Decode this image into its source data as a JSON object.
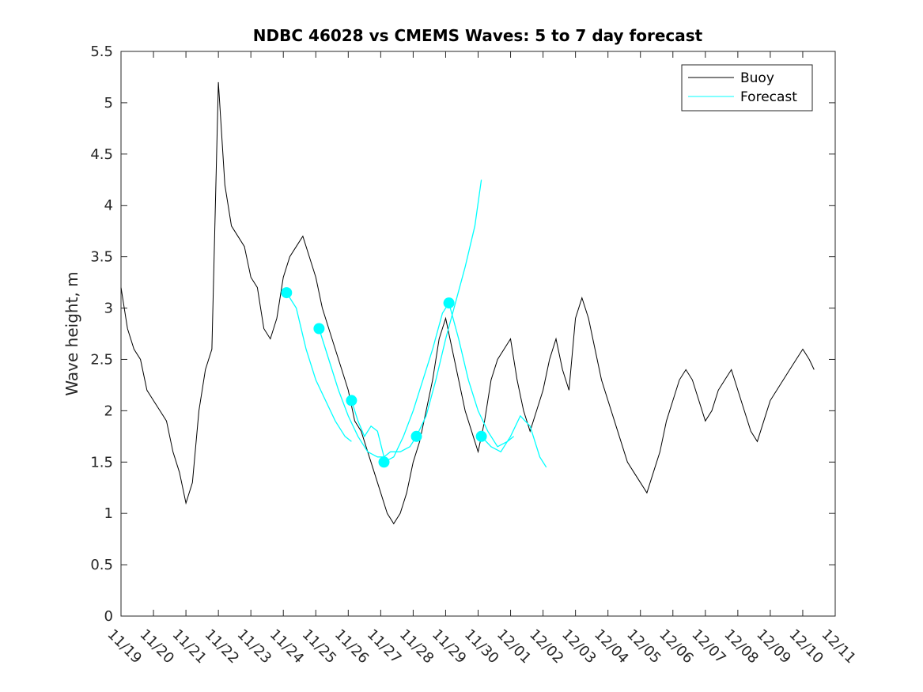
{
  "chart_data": {
    "type": "line",
    "title": "NDBC 46028 vs CMEMS Waves: 5 to 7 day forecast",
    "xlabel": "",
    "ylabel": "Wave height, m",
    "xlim": [
      0,
      22
    ],
    "ylim": [
      0,
      5.5
    ],
    "x_tick_labels": [
      "11/19",
      "11/20",
      "11/21",
      "11/22",
      "11/23",
      "11/24",
      "11/25",
      "11/26",
      "11/27",
      "11/28",
      "11/29",
      "11/30",
      "12/01",
      "12/02",
      "12/03",
      "12/04",
      "12/05",
      "12/06",
      "12/07",
      "12/08",
      "12/09",
      "12/10",
      "12/11"
    ],
    "y_tick_labels": [
      "0",
      "0.5",
      "1",
      "1.5",
      "2",
      "2.5",
      "3",
      "3.5",
      "4",
      "4.5",
      "5",
      "5.5"
    ],
    "legend": {
      "position": "top-right",
      "entries": [
        "Buoy",
        "Forecast"
      ]
    },
    "colors": {
      "buoy": "#000000",
      "forecast": "#00ffff",
      "axes": "#262626"
    },
    "series": [
      {
        "name": "Buoy",
        "x": [
          0,
          0.2,
          0.4,
          0.6,
          0.8,
          1.0,
          1.2,
          1.4,
          1.6,
          1.8,
          2.0,
          2.2,
          2.4,
          2.6,
          2.8,
          3.0,
          3.2,
          3.4,
          3.6,
          3.8,
          4.0,
          4.2,
          4.4,
          4.6,
          4.8,
          5.0,
          5.2,
          5.4,
          5.6,
          5.8,
          6.0,
          6.2,
          6.4,
          6.6,
          6.8,
          7.0,
          7.2,
          7.4,
          7.6,
          7.8,
          8.0,
          8.2,
          8.4,
          8.6,
          8.8,
          9.0,
          9.2,
          9.4,
          9.6,
          9.8,
          10.0,
          10.2,
          10.4,
          10.6,
          10.8,
          11.0,
          11.2,
          11.4,
          11.6,
          11.8,
          12.0,
          12.2,
          12.4,
          12.6,
          12.8,
          13.0,
          13.2,
          13.4,
          13.6,
          13.8,
          14.0,
          14.2,
          14.4,
          14.6,
          14.8,
          15.0,
          15.2,
          15.4,
          15.6,
          15.8,
          16.0,
          16.2,
          16.4,
          16.6,
          16.8,
          17.0,
          17.2,
          17.4,
          17.6,
          17.8,
          18.0,
          18.2,
          18.4,
          18.6,
          18.8,
          19.0,
          19.2,
          19.4,
          19.6,
          19.8,
          20.0,
          20.2,
          20.4,
          20.6,
          20.8,
          21.0,
          21.2,
          21.35
        ],
        "values": [
          3.2,
          2.8,
          2.6,
          2.5,
          2.2,
          2.1,
          2.0,
          1.9,
          1.6,
          1.4,
          1.1,
          1.3,
          2.0,
          2.4,
          2.6,
          5.2,
          4.2,
          3.8,
          3.7,
          3.6,
          3.3,
          3.2,
          2.8,
          2.7,
          2.9,
          3.3,
          3.5,
          3.6,
          3.7,
          3.5,
          3.3,
          3.0,
          2.8,
          2.6,
          2.4,
          2.2,
          1.9,
          1.8,
          1.6,
          1.4,
          1.2,
          1.0,
          0.9,
          1.0,
          1.2,
          1.5,
          1.7,
          2.0,
          2.3,
          2.7,
          2.9,
          2.6,
          2.3,
          2.0,
          1.8,
          1.6,
          1.9,
          2.3,
          2.5,
          2.6,
          2.7,
          2.3,
          2.0,
          1.8,
          2.0,
          2.2,
          2.5,
          2.7,
          2.4,
          2.2,
          2.9,
          3.1,
          2.9,
          2.6,
          2.3,
          2.1,
          1.9,
          1.7,
          1.5,
          1.4,
          1.3,
          1.2,
          1.4,
          1.6,
          1.9,
          2.1,
          2.3,
          2.4,
          2.3,
          2.1,
          1.9,
          2.0,
          2.2,
          2.3,
          2.4,
          2.2,
          2.0,
          1.8,
          1.7,
          1.9,
          2.1,
          2.2,
          2.3,
          2.4,
          2.5,
          2.6,
          2.5,
          2.4
        ]
      },
      {
        "name": "Forecast",
        "segments": [
          {
            "x": [
              5.1,
              5.4,
              5.7,
              6.0,
              6.3,
              6.6,
              6.9,
              7.1
            ],
            "values": [
              3.15,
              3.0,
              2.6,
              2.3,
              2.1,
              1.9,
              1.75,
              1.7
            ]
          },
          {
            "x": [
              6.1,
              6.4,
              6.7,
              7.0,
              7.3,
              7.6,
              7.9,
              8.1
            ],
            "values": [
              2.8,
              2.5,
              2.2,
              1.95,
              1.75,
              1.6,
              1.55,
              1.55
            ]
          },
          {
            "x": [
              7.1,
              7.3,
              7.5,
              7.7,
              7.9,
              8.1,
              8.3,
              8.6,
              8.9,
              9.1
            ],
            "values": [
              2.1,
              1.9,
              1.75,
              1.85,
              1.8,
              1.55,
              1.6,
              1.6,
              1.65,
              1.75
            ]
          },
          {
            "x": [
              8.1,
              8.4,
              8.7,
              9.0,
              9.3,
              9.6,
              9.9,
              10.1
            ],
            "values": [
              1.5,
              1.55,
              1.75,
              2.0,
              2.3,
              2.6,
              2.95,
              3.05
            ]
          },
          {
            "x": [
              9.1,
              9.4,
              9.7,
              10.0,
              10.3,
              10.6,
              10.9,
              11.1
            ],
            "values": [
              1.75,
              1.95,
              2.3,
              2.7,
              3.05,
              3.4,
              3.8,
              4.25
            ]
          },
          {
            "x": [
              10.1,
              10.4,
              10.7,
              11.0,
              11.3,
              11.6,
              11.9,
              12.1
            ],
            "values": [
              3.05,
              2.7,
              2.3,
              2.0,
              1.8,
              1.65,
              1.7,
              1.75
            ]
          },
          {
            "x": [
              11.1,
              11.4,
              11.7,
              12.0,
              12.3,
              12.6,
              12.9,
              13.1
            ],
            "values": [
              1.75,
              1.65,
              1.6,
              1.75,
              1.95,
              1.85,
              1.55,
              1.45
            ]
          }
        ],
        "markers": {
          "x": [
            5.1,
            6.1,
            7.1,
            8.1,
            9.1,
            10.1,
            11.1
          ],
          "values": [
            3.15,
            2.8,
            2.1,
            1.5,
            1.75,
            3.05,
            1.75
          ]
        }
      }
    ]
  }
}
